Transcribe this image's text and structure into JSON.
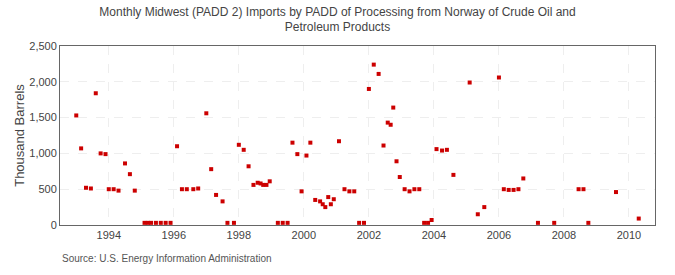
{
  "chart_data": {
    "type": "scatter",
    "title": "Monthly Midwest (PADD 2) Imports by PADD of Processing from Norway of Crude Oil and\nPetroleum Products",
    "ylabel": "Thousand Barrels",
    "annotations": [
      "Source: U.S. Energy Information Administration"
    ],
    "color": "#cc0000",
    "marker": "square",
    "grid": true,
    "xlim": [
      1992.5,
      2010.8
    ],
    "xticks": [
      1994,
      1996,
      1998,
      2000,
      2002,
      2004,
      2006,
      2008,
      2010
    ],
    "ylim": [
      0,
      2500
    ],
    "yticks": [
      0,
      500,
      {
        "value": 1000,
        "label": "1,000"
      },
      {
        "value": 1500,
        "label": "1,500"
      },
      {
        "value": 2000,
        "label": "2,000"
      },
      {
        "value": 2500,
        "label": "2,500"
      }
    ],
    "x": [
      1993.0,
      1993.15,
      1993.3,
      1993.45,
      1993.6,
      1993.75,
      1993.9,
      1994.0,
      1994.15,
      1994.3,
      1994.5,
      1994.65,
      1994.8,
      1995.1,
      1995.2,
      1995.3,
      1995.45,
      1995.6,
      1995.75,
      1995.9,
      1996.1,
      1996.25,
      1996.4,
      1996.6,
      1996.75,
      1997.0,
      1997.15,
      1997.3,
      1997.5,
      1997.65,
      1997.85,
      1998.0,
      1998.15,
      1998.3,
      1998.45,
      1998.58,
      1998.67,
      1998.75,
      1998.85,
      1998.95,
      1999.2,
      1999.35,
      1999.5,
      1999.65,
      1999.8,
      1999.93,
      2000.08,
      2000.2,
      2000.35,
      2000.5,
      2000.58,
      2000.66,
      2000.75,
      2000.83,
      2000.92,
      2001.08,
      2001.25,
      2001.4,
      2001.55,
      2001.7,
      2001.85,
      2002.0,
      2002.15,
      2002.3,
      2002.45,
      2002.58,
      2002.67,
      2002.75,
      2002.85,
      2002.95,
      2003.1,
      2003.25,
      2003.4,
      2003.55,
      2003.7,
      2003.82,
      2003.93,
      2004.08,
      2004.25,
      2004.4,
      2004.6,
      2005.1,
      2005.35,
      2005.55,
      2006.0,
      2006.15,
      2006.3,
      2006.45,
      2006.6,
      2006.75,
      2007.2,
      2007.7,
      2008.45,
      2008.6,
      2008.75,
      2009.6,
      2010.3
    ],
    "values": [
      1530,
      1070,
      520,
      510,
      1840,
      1000,
      990,
      500,
      500,
      480,
      860,
      710,
      480,
      30,
      30,
      30,
      30,
      30,
      30,
      30,
      1100,
      500,
      500,
      500,
      510,
      1560,
      780,
      420,
      330,
      30,
      30,
      1120,
      1050,
      820,
      560,
      590,
      580,
      560,
      560,
      610,
      30,
      30,
      30,
      1150,
      990,
      470,
      970,
      1150,
      350,
      330,
      290,
      250,
      390,
      290,
      360,
      1170,
      500,
      470,
      470,
      30,
      30,
      1900,
      2240,
      2110,
      1110,
      1430,
      1400,
      1640,
      890,
      670,
      500,
      470,
      500,
      500,
      30,
      30,
      70,
      1060,
      1040,
      1050,
      700,
      1990,
      150,
      250,
      2060,
      500,
      490,
      490,
      500,
      650,
      30,
      30,
      500,
      500,
      30,
      460,
      90
    ]
  }
}
